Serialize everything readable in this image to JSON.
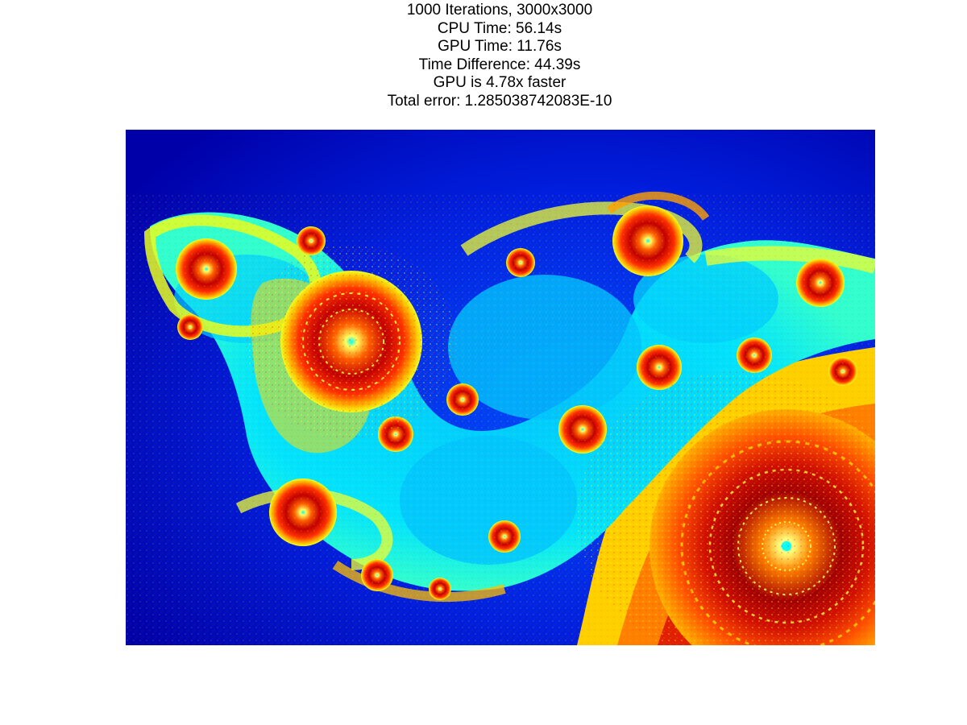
{
  "figure": {
    "title_lines": [
      "1000 Iterations, 3000x3000",
      "CPU Time: 56.14s",
      "GPU Time: 11.76s",
      "Time Difference: 44.39s",
      "GPU is 4.78x faster",
      "Total error: 1.285038742083E-10"
    ],
    "image": {
      "subject": "Julia set fractal",
      "colormap": "jet",
      "colors": {
        "background": "#0000b0",
        "cyan": "#00d8ff",
        "yellow": "#e8ff20",
        "orange": "#ff9000",
        "red": "#e81000",
        "darkred": "#9a0000"
      }
    }
  }
}
